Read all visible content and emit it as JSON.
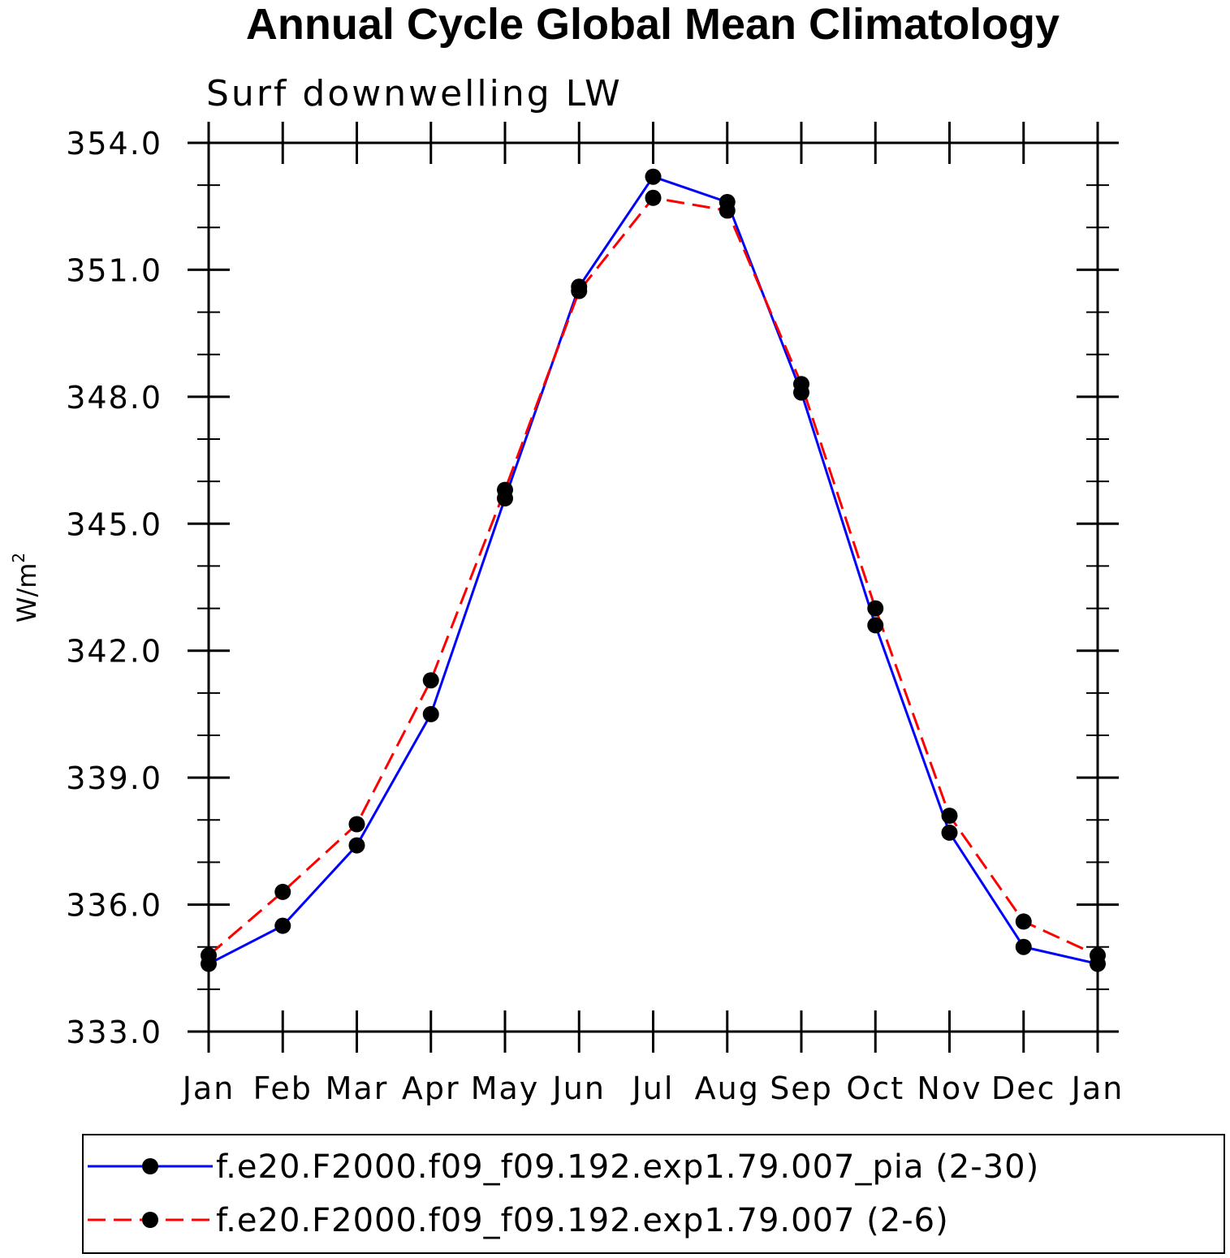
{
  "chart_data": {
    "type": "line",
    "title": "Annual Cycle Global Mean Climatology",
    "subtitle": "Surf downwelling LW",
    "ylabel": "W/m",
    "ylabel_superscript": "2",
    "ylim": [
      333.0,
      354.0
    ],
    "yticks": [
      "333.0",
      "336.0",
      "339.0",
      "342.0",
      "345.0",
      "348.0",
      "351.0",
      "354.0"
    ],
    "ytick_values": [
      333,
      336,
      339,
      342,
      345,
      348,
      351,
      354
    ],
    "categories": [
      "Jan",
      "Feb",
      "Mar",
      "Apr",
      "May",
      "Jun",
      "Jul",
      "Aug",
      "Sep",
      "Oct",
      "Nov",
      "Dec",
      "Jan"
    ],
    "series": [
      {
        "name": "f.e20.F2000.f09_f09.192.exp1.79.007_pia (2-30)",
        "color": "#0000ff",
        "dash": "solid",
        "values": [
          334.6,
          335.5,
          337.4,
          340.5,
          345.6,
          350.6,
          353.2,
          352.6,
          348.1,
          342.6,
          337.7,
          335.0,
          334.6
        ]
      },
      {
        "name": "f.e20.F2000.f09_f09.192.exp1.79.007 (2-6)",
        "color": "#ff0000",
        "dash": "dashed",
        "values": [
          334.8,
          336.3,
          337.9,
          341.3,
          345.8,
          350.5,
          352.7,
          352.4,
          348.3,
          343.0,
          338.1,
          335.6,
          334.8
        ]
      }
    ],
    "legend_position": "bottom",
    "grid": false
  }
}
